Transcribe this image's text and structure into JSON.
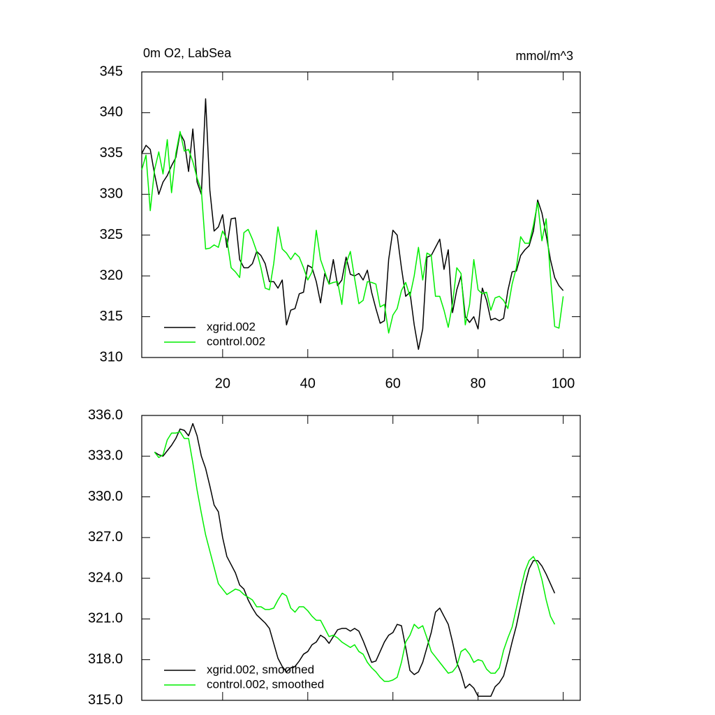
{
  "chart_data": [
    {
      "type": "line",
      "title": "0m O2, LabSea",
      "units": "mmol/m^3",
      "x": [
        1,
        2,
        3,
        4,
        5,
        6,
        7,
        8,
        9,
        10,
        11,
        12,
        13,
        14,
        15,
        16,
        17,
        18,
        19,
        20,
        21,
        22,
        23,
        24,
        25,
        26,
        27,
        28,
        29,
        30,
        31,
        32,
        33,
        34,
        35,
        36,
        37,
        38,
        39,
        40,
        41,
        42,
        43,
        44,
        45,
        46,
        47,
        48,
        49,
        50,
        51,
        52,
        53,
        54,
        55,
        56,
        57,
        58,
        59,
        60,
        61,
        62,
        63,
        64,
        65,
        66,
        67,
        68,
        69,
        70,
        71,
        72,
        73,
        74,
        75,
        76,
        77,
        78,
        79,
        80,
        81,
        82,
        83,
        84,
        85,
        86,
        87,
        88,
        89,
        90,
        91,
        92,
        93,
        94,
        95,
        96,
        97,
        98,
        99,
        100
      ],
      "series": [
        {
          "name": "xgrid.002",
          "color": "#000000",
          "values": [
            335,
            336,
            335.5,
            332.5,
            330,
            331.5,
            332.3,
            333.5,
            334.5,
            337.5,
            336.5,
            332.8,
            338,
            331.5,
            330,
            341.7,
            330.5,
            325.5,
            326,
            327.5,
            323.5,
            327,
            327.1,
            322,
            321,
            321,
            321.5,
            323,
            322.5,
            321.5,
            319.3,
            319.3,
            318.5,
            319.5,
            314,
            315.8,
            316,
            317.8,
            318,
            321.3,
            321,
            319.3,
            316.7,
            320.3,
            319,
            322,
            318.8,
            319.5,
            322.3,
            320.2,
            320,
            320.3,
            319.5,
            320.7,
            318,
            316,
            314.2,
            314.5,
            322,
            325.6,
            325,
            321,
            317.5,
            318,
            314,
            311,
            313.5,
            322.3,
            322.5,
            323.5,
            324.5,
            320.8,
            323.2,
            315.5,
            318.3,
            320,
            315,
            314.3,
            315,
            313.5,
            318.5,
            317,
            314.6,
            314.8,
            314.5,
            314.8,
            318.2,
            320.5,
            320.6,
            322.5,
            323.2,
            323.7,
            325.5,
            329.3,
            327.7,
            325,
            322,
            319.8,
            318.8,
            318.2
          ]
        },
        {
          "name": "control.002",
          "color": "#00ee00",
          "values": [
            333,
            334.8,
            328,
            333,
            335.2,
            332.5,
            336.7,
            330.2,
            335,
            337.7,
            335.3,
            335.5,
            334,
            332,
            330.5,
            323.3,
            323.4,
            323.8,
            323.5,
            325.5,
            324.5,
            321,
            320.5,
            319.8,
            325.3,
            325.7,
            324.5,
            323,
            321,
            318.5,
            318.3,
            321.5,
            326,
            323.3,
            322.8,
            322,
            322.8,
            322.3,
            321,
            319.5,
            320.5,
            325.6,
            322,
            320.5,
            319,
            319.2,
            319.3,
            316.5,
            321.5,
            323,
            319.7,
            316.6,
            317,
            319.3,
            319.2,
            319,
            316.2,
            316.5,
            313,
            315.2,
            316,
            318.2,
            319.2,
            317.5,
            320,
            323.5,
            319.5,
            322.8,
            322.5,
            317.5,
            317.5,
            315.8,
            313.7,
            316.6,
            321,
            320.3,
            314,
            316.5,
            322,
            318.3,
            317.8,
            318,
            315.8,
            317.3,
            317.5,
            317,
            316,
            319,
            321,
            324.8,
            324,
            324,
            326.2,
            329,
            324.3,
            327,
            320,
            313.8,
            313.6,
            317.5
          ]
        }
      ],
      "xlim": [
        1,
        104
      ],
      "xticks": [
        20,
        40,
        60,
        80,
        100
      ],
      "ylim": [
        310,
        345
      ],
      "yticks": [
        310,
        315,
        320,
        325,
        330,
        335,
        340,
        345
      ],
      "legend": "lower left"
    },
    {
      "type": "line",
      "x": [
        1,
        2,
        3,
        4,
        5,
        6,
        7,
        8,
        9,
        10,
        11,
        12,
        13,
        14,
        15,
        16,
        17,
        18,
        19,
        20,
        21,
        22,
        23,
        24,
        25,
        26,
        27,
        28,
        29,
        30,
        31,
        32,
        33,
        34,
        35,
        36,
        37,
        38,
        39,
        40,
        41,
        42,
        43,
        44,
        45,
        46,
        47,
        48,
        49,
        50,
        51,
        52,
        53,
        54,
        55,
        56,
        57,
        58,
        59,
        60,
        61,
        62,
        63,
        64,
        65,
        66,
        67,
        68,
        69,
        70,
        71,
        72,
        73,
        74,
        75,
        76,
        77,
        78,
        79,
        80,
        81,
        82,
        83,
        84,
        85,
        86,
        87,
        88,
        89,
        90,
        91,
        92,
        93,
        94,
        95,
        96,
        97,
        98,
        99,
        100
      ],
      "series": [
        {
          "name": "xgrid.002, smoothed",
          "color": "#000000",
          "values": [
            null,
            null,
            null,
            333.3,
            333.1,
            333.0,
            333.4,
            333.8,
            334.3,
            335.0,
            334.9,
            334.5,
            335.4,
            334.5,
            333.0,
            332.1,
            330.8,
            329.4,
            328.9,
            327.0,
            325.6,
            325.0,
            324.4,
            323.5,
            323.2,
            322.4,
            321.8,
            321.3,
            321.0,
            320.7,
            320.3,
            319.2,
            318.1,
            317.5,
            317.1,
            317.4,
            317.5,
            317.9,
            318.4,
            318.6,
            319.1,
            319.3,
            319.8,
            319.6,
            319.2,
            319.7,
            320.2,
            320.3,
            320.3,
            320.1,
            320.3,
            320.1,
            319.4,
            318.6,
            317.8,
            317.9,
            318.6,
            319.3,
            319.8,
            320.0,
            320.6,
            320.5,
            318.9,
            317.2,
            316.9,
            317.1,
            317.8,
            318.9,
            320.0,
            321.5,
            321.8,
            321.2,
            320.6,
            319.3,
            317.8,
            317.0,
            315.9,
            316.2,
            315.9,
            315.3,
            315.3,
            315.3,
            315.3,
            316.0,
            316.3,
            316.8,
            318.0,
            319.3,
            320.5,
            322.0,
            323.5,
            324.7,
            325.3,
            325.3,
            324.9,
            324.3,
            323.6,
            322.9,
            null,
            null
          ]
        },
        {
          "name": "control.002, smoothed",
          "color": "#00ee00",
          "values": [
            null,
            null,
            null,
            333.3,
            332.9,
            333.1,
            334.2,
            334.7,
            334.7,
            334.8,
            334.3,
            334.3,
            332.5,
            330.5,
            328.8,
            327.2,
            326.0,
            324.8,
            323.6,
            323.2,
            322.8,
            323.0,
            323.2,
            323.1,
            322.8,
            322.6,
            322.4,
            321.9,
            321.9,
            321.7,
            321.7,
            321.8,
            322.4,
            322.9,
            322.7,
            321.8,
            321.5,
            321.9,
            321.9,
            321.6,
            321.2,
            320.9,
            320.9,
            320.3,
            319.7,
            319.8,
            319.6,
            319.3,
            319.1,
            318.9,
            319.1,
            318.6,
            318.4,
            317.8,
            317.4,
            317.1,
            316.7,
            316.4,
            316.4,
            316.5,
            316.7,
            317.8,
            319.3,
            319.8,
            320.6,
            320.3,
            320.5,
            319.6,
            318.6,
            318.2,
            317.8,
            317.4,
            317.0,
            317.1,
            317.5,
            318.6,
            318.8,
            318.4,
            317.8,
            318.0,
            317.9,
            317.3,
            317.0,
            317.0,
            317.4,
            318.7,
            319.6,
            320.4,
            321.8,
            323.2,
            324.5,
            325.3,
            325.6,
            325.0,
            323.9,
            322.4,
            321.2,
            320.6,
            null,
            null
          ]
        }
      ],
      "xlim": [
        1,
        104
      ],
      "xticks": [
        20,
        40,
        60,
        80,
        100
      ],
      "ylim": [
        315,
        336
      ],
      "yticks": [
        {
          "value": 315,
          "label": "315.0"
        },
        {
          "value": 318,
          "label": "318.0"
        },
        {
          "value": 321,
          "label": "321.0"
        },
        {
          "value": 324,
          "label": "324.0"
        },
        {
          "value": 327,
          "label": "327.0"
        },
        {
          "value": 330,
          "label": "330.0"
        },
        {
          "value": 333,
          "label": "333.0"
        },
        {
          "value": 336,
          "label": "336.0"
        }
      ],
      "legend": "lower left",
      "show_xtick_labels": false
    }
  ]
}
